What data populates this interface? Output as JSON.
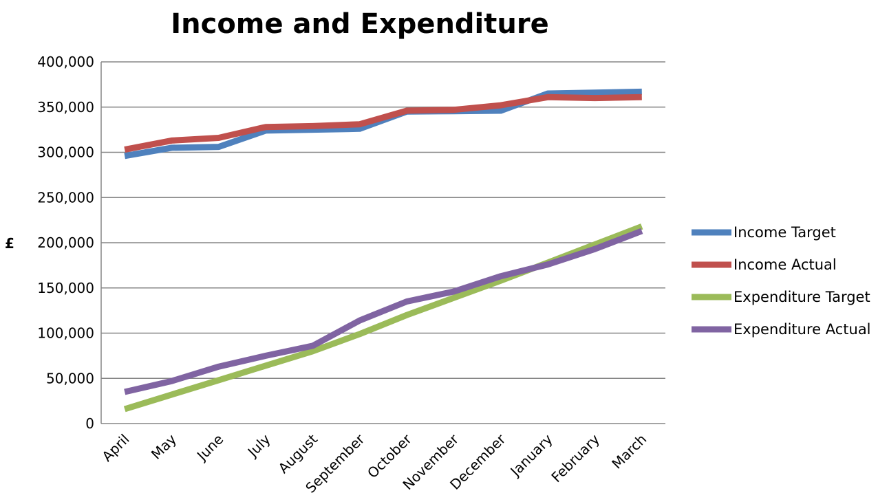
{
  "chart_data": {
    "type": "line",
    "title": "Income and Expenditure",
    "xlabel": "",
    "ylabel": "£",
    "categories": [
      "April",
      "May",
      "June",
      "July",
      "August",
      "September",
      "October",
      "November",
      "December",
      "January",
      "February",
      "March"
    ],
    "ylim": [
      0,
      400000
    ],
    "yticks": [
      0,
      50000,
      100000,
      150000,
      200000,
      250000,
      300000,
      350000,
      400000
    ],
    "ytick_labels": [
      "0",
      "50,000",
      "100,000",
      "150,000",
      "200,000",
      "250,000",
      "300,000",
      "350,000",
      "400,000"
    ],
    "grid": true,
    "legend_position": "right",
    "series": [
      {
        "name": "Income Target",
        "color": "#4F81BD",
        "values": [
          296000,
          305000,
          306000,
          324000,
          325000,
          326000,
          345000,
          345500,
          346000,
          365000,
          366000,
          367000
        ]
      },
      {
        "name": "Income Actual",
        "color": "#C0504D",
        "values": [
          303000,
          313000,
          316000,
          328000,
          329000,
          331000,
          346000,
          347000,
          352000,
          361000,
          360000,
          361000
        ]
      },
      {
        "name": "Expenditure Target",
        "color": "#9BBB59",
        "values": [
          16000,
          32000,
          48000,
          64000,
          80000,
          99000,
          120000,
          139000,
          158000,
          178000,
          198000,
          218000
        ]
      },
      {
        "name": "Expenditure Actual",
        "color": "#8064A2",
        "values": [
          35000,
          47000,
          63000,
          75000,
          86000,
          114000,
          135000,
          146000,
          163000,
          176000,
          193000,
          213000
        ]
      }
    ]
  }
}
